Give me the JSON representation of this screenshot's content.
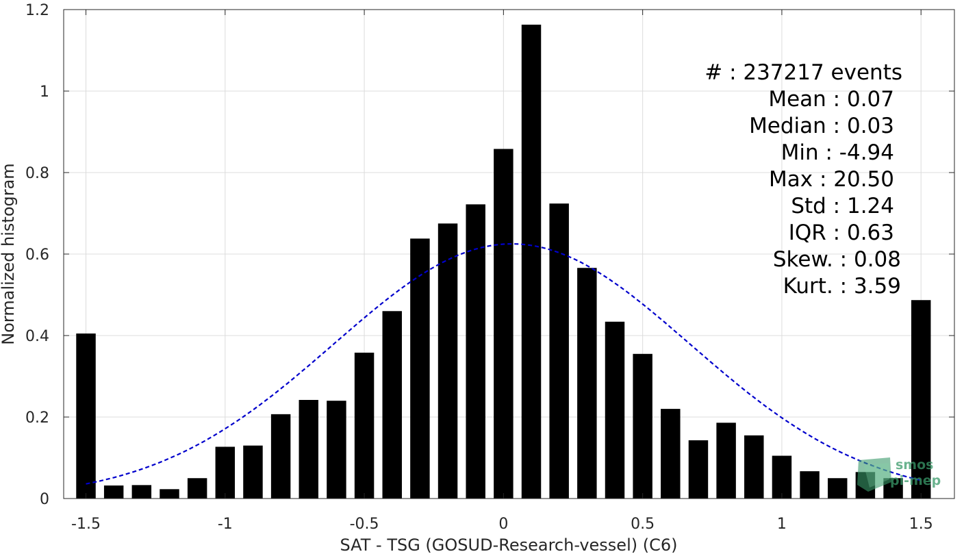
{
  "chart_data": {
    "type": "bar",
    "title": "",
    "xlabel": "SAT - TSG (GOSUD-Research-vessel) (C6)",
    "ylabel": "Normalized histogram",
    "xlim": [
      -1.58,
      1.62
    ],
    "ylim": [
      0,
      1.2
    ],
    "grid": true,
    "x_ticks": [
      -1.5,
      -1,
      -0.5,
      0,
      0.5,
      1,
      1.5
    ],
    "x_tick_labels": [
      "-1.5",
      "-1",
      "-0.5",
      "0",
      "0.5",
      "1",
      "1.5"
    ],
    "y_ticks": [
      0,
      0.2,
      0.4,
      0.6,
      0.8,
      1,
      1.2
    ],
    "y_tick_labels": [
      "0",
      "0.2",
      "0.4",
      "0.6",
      "0.8",
      "1",
      "1.2"
    ],
    "bar_width": 0.07,
    "bar_color": "#000000",
    "x": [
      -1.5,
      -1.4,
      -1.3,
      -1.2,
      -1.1,
      -1.0,
      -0.9,
      -0.8,
      -0.7,
      -0.6,
      -0.5,
      -0.4,
      -0.3,
      -0.2,
      -0.1,
      0.0,
      0.1,
      0.2,
      0.3,
      0.4,
      0.5,
      0.6,
      0.7,
      0.8,
      0.9,
      1.0,
      1.1,
      1.2,
      1.3,
      1.4,
      1.5
    ],
    "values": [
      0.405,
      0.032,
      0.033,
      0.023,
      0.05,
      0.127,
      0.13,
      0.207,
      0.242,
      0.24,
      0.358,
      0.46,
      0.638,
      0.675,
      0.722,
      0.858,
      1.163,
      0.724,
      0.566,
      0.434,
      0.355,
      0.22,
      0.143,
      0.186,
      0.155,
      0.105,
      0.067,
      0.05,
      0.065,
      0.05,
      0.487
    ],
    "fit_curve": {
      "type": "normal",
      "mean": 0.03,
      "peak": 0.625,
      "sigma": 0.64,
      "x_range": [
        -1.5,
        1.5
      ],
      "color": "#0000cc",
      "style": "dashed"
    },
    "stats_annotation": [
      "#  : 237217 events",
      "Mean : 0.07",
      "Median : 0.03",
      "Min : -4.94",
      "Max : 20.50",
      "Std : 1.24",
      "IQR : 0.63",
      "Skew. : 0.08",
      "Kurt. : 3.59"
    ]
  },
  "logo": {
    "line1": "smos",
    "line2": "pi-mep",
    "color": "#3a9a6a"
  }
}
